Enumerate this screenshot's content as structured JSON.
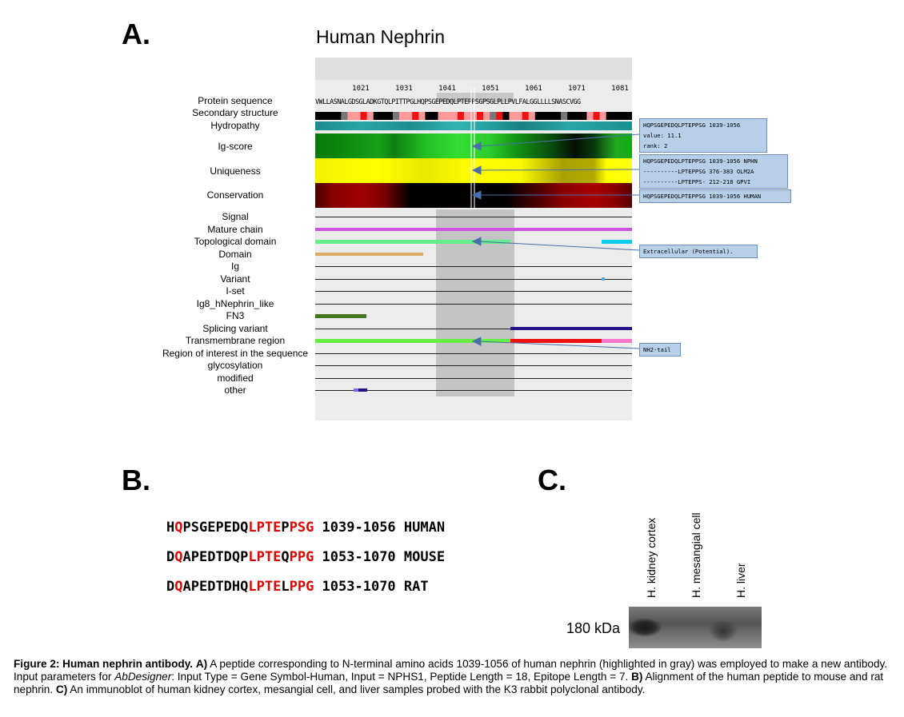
{
  "panel_a": {
    "letter": "A.",
    "title": "Human Nephrin",
    "ticks": [
      "1021",
      "1031",
      "1041",
      "1051",
      "1061",
      "1071",
      "1081"
    ],
    "sequence": "VWLLASNALGDSGLADKGTQLPITTPGLHQPSGEPEDQLPTEPPSGPSGLPLLPVLFALGGLLLLSNASCVGG",
    "track_labels": [
      "Protein sequence",
      "Secondary structure",
      "Hydropathy",
      "Ig-score",
      "Uniqueness",
      "Conservation",
      "Signal",
      "Mature chain",
      "Topological domain",
      "Domain",
      "Ig",
      "Variant",
      "I-set",
      "Ig8_hNephrin_like",
      "FN3",
      "Splicing variant",
      "Transmembrane region",
      "Region of interest in the sequence",
      "glycosylation",
      "modified",
      "other"
    ],
    "callouts": {
      "hydro": [
        "HQPSGEPEDQLPTEPPSG 1039-1056",
        "value: 11.1",
        "rank: 2"
      ],
      "unique": [
        "HQPSGEPEDQLPTEPPSG 1039-1056 NPHN",
        "----------LPTEPPSG 376-383 OLM2A",
        "----------LPTEPPS- 212-218 GPVI"
      ],
      "conserv": [
        "HQPSGEPEDQLPTEPPSG 1039-1056 HUMAN"
      ],
      "topo": [
        "Extracellular (Potential)."
      ],
      "tm": [
        "NH2-tail"
      ]
    },
    "colors": {
      "mature": "#cc55dd",
      "topo": "#66ee88",
      "topo_end": "#11ccee",
      "domain": "#ddaa66",
      "fn3": "#447722",
      "splice": "#221188",
      "tm_green": "#66ee44",
      "tm_red": "#ee1111",
      "tm_pink": "#ff77cc",
      "highlight": "#c4c4c4"
    }
  },
  "panel_b": {
    "letter": "B.",
    "rows": [
      {
        "segments": [
          [
            "H",
            "k"
          ],
          [
            "Q",
            "r"
          ],
          [
            "PSGEPEDQ",
            "k"
          ],
          [
            "LPTE",
            "r"
          ],
          [
            "P",
            "k"
          ],
          [
            "PSG",
            "r"
          ],
          [
            " 1039-1056 HUMAN",
            "k"
          ]
        ]
      },
      {
        "segments": [
          [
            "D",
            "k"
          ],
          [
            "Q",
            "r"
          ],
          [
            "APEDTDQP",
            "k"
          ],
          [
            "LPTE",
            "r"
          ],
          [
            "Q",
            "k"
          ],
          [
            "PPG",
            "r"
          ],
          [
            " 1053-1070 MOUSE",
            "k"
          ]
        ]
      },
      {
        "segments": [
          [
            "D",
            "k"
          ],
          [
            "Q",
            "r"
          ],
          [
            "APEDTDHQ",
            "k"
          ],
          [
            "LPTE",
            "r"
          ],
          [
            "L",
            "k"
          ],
          [
            "PPG",
            "r"
          ],
          [
            " 1053-1070 RAT",
            "k"
          ]
        ]
      }
    ]
  },
  "panel_c": {
    "letter": "C.",
    "lanes": [
      "H. kidney cortex",
      "H. mesangial cell",
      "H. liver"
    ],
    "marker": "180 kDa"
  },
  "caption": {
    "lead": "Figure 2: Human nephrin antibody.",
    "a_tag": "A)",
    "a_text": " A peptide corresponding to N-terminal amino acids 1039-1056 of human nephrin (highlighted in gray) was employed to make a new antibody. Input parameters for ",
    "tool": "AbDesigner",
    "a_text2": ": Input Type = Gene Symbol-Human, Input = NPHS1, Peptide Length = 18, Epitope Length = 7. ",
    "b_tag": "B)",
    "b_text": " Alignment of the human peptide to mouse and rat nephrin. ",
    "c_tag": "C)",
    "c_text": " An immunoblot of human kidney cortex, mesangial cell, and liver samples probed with the K3 rabbit polyclonal antibody."
  }
}
